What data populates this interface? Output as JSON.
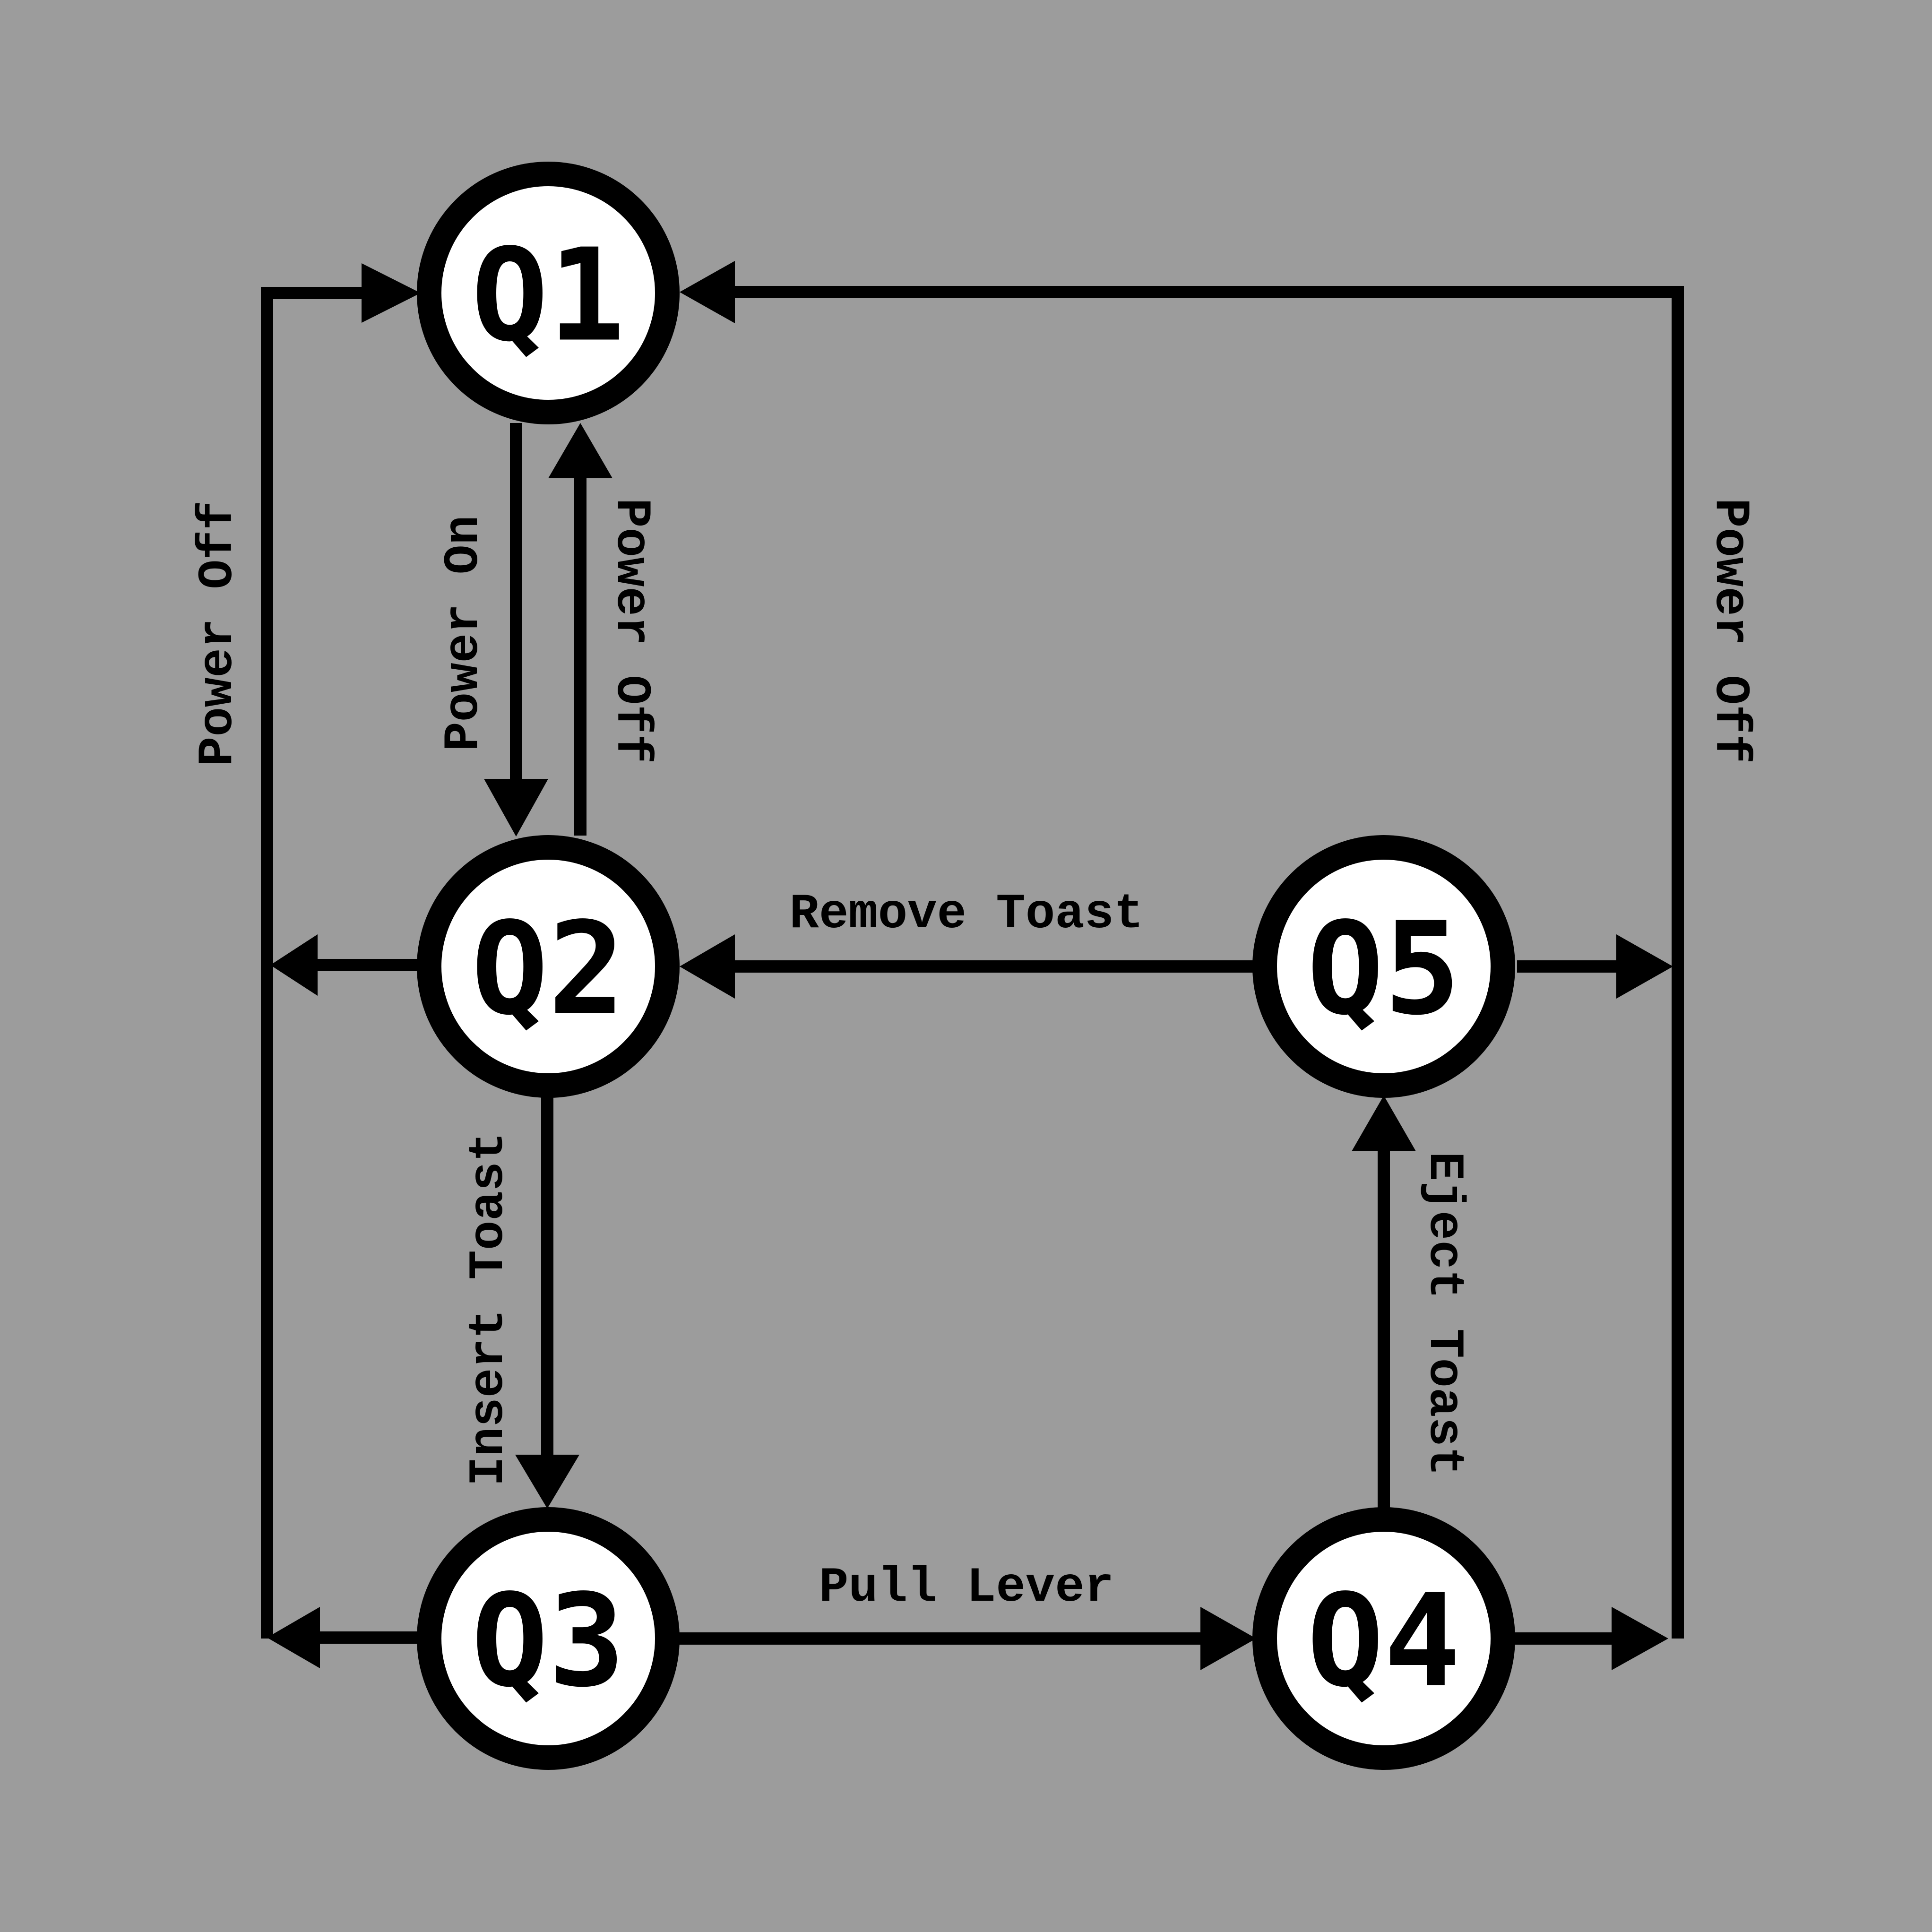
{
  "colors": {
    "background": "#9c9c9c",
    "node_fill": "#ffffff",
    "stroke": "#000000"
  },
  "nodes": {
    "q1": "Q1",
    "q2": "Q2",
    "q3": "Q3",
    "q4": "Q4",
    "q5": "Q5"
  },
  "edges": {
    "q1_to_q2": "Power On",
    "q2_to_q1": "Power Off",
    "left_power_off": "Power Off",
    "right_power_off": "Power Off",
    "q5_to_q2": "Remove Toast",
    "q2_to_q3": "Insert Toast",
    "q3_to_q4": "Pull Lever",
    "q4_to_q5": "Eject Toast"
  }
}
